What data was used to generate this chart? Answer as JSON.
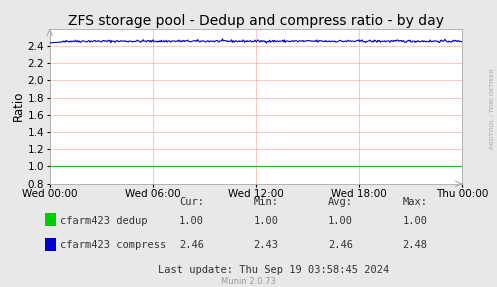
{
  "title": "ZFS storage pool - Dedup and compress ratio - by day",
  "ylabel": "Ratio",
  "bg_color": "#e8e8e8",
  "plot_bg_color": "#ffffff",
  "grid_color": "#ff9999",
  "x_ticks_labels": [
    "Wed 00:00",
    "Wed 06:00",
    "Wed 12:00",
    "Wed 18:00",
    "Thu 00:00"
  ],
  "ylim": [
    0.8,
    2.6
  ],
  "yticks": [
    0.8,
    1.0,
    1.2,
    1.4,
    1.6,
    1.8,
    2.0,
    2.2,
    2.4
  ],
  "dedup_value": 1.0,
  "compress_value": 2.455,
  "dedup_color": "#00cc00",
  "compress_color": "#0000cc",
  "legend": [
    {
      "label": "cfarm423 dedup",
      "color": "#00cc00"
    },
    {
      "label": "cfarm423 compress",
      "color": "#0000cc"
    }
  ],
  "stats_headers": [
    "Cur:",
    "Min:",
    "Avg:",
    "Max:"
  ],
  "stats_dedup": [
    1.0,
    1.0,
    1.0,
    1.0
  ],
  "stats_compress": [
    2.46,
    2.43,
    2.46,
    2.48
  ],
  "last_update": "Last update: Thu Sep 19 03:58:45 2024",
  "munin_version": "Munin 2.0.73",
  "watermark": "RRDTOOL / TOBI OETIKER",
  "title_fontsize": 10,
  "axis_fontsize": 7.5,
  "legend_fontsize": 7.5,
  "stats_fontsize": 7.5
}
